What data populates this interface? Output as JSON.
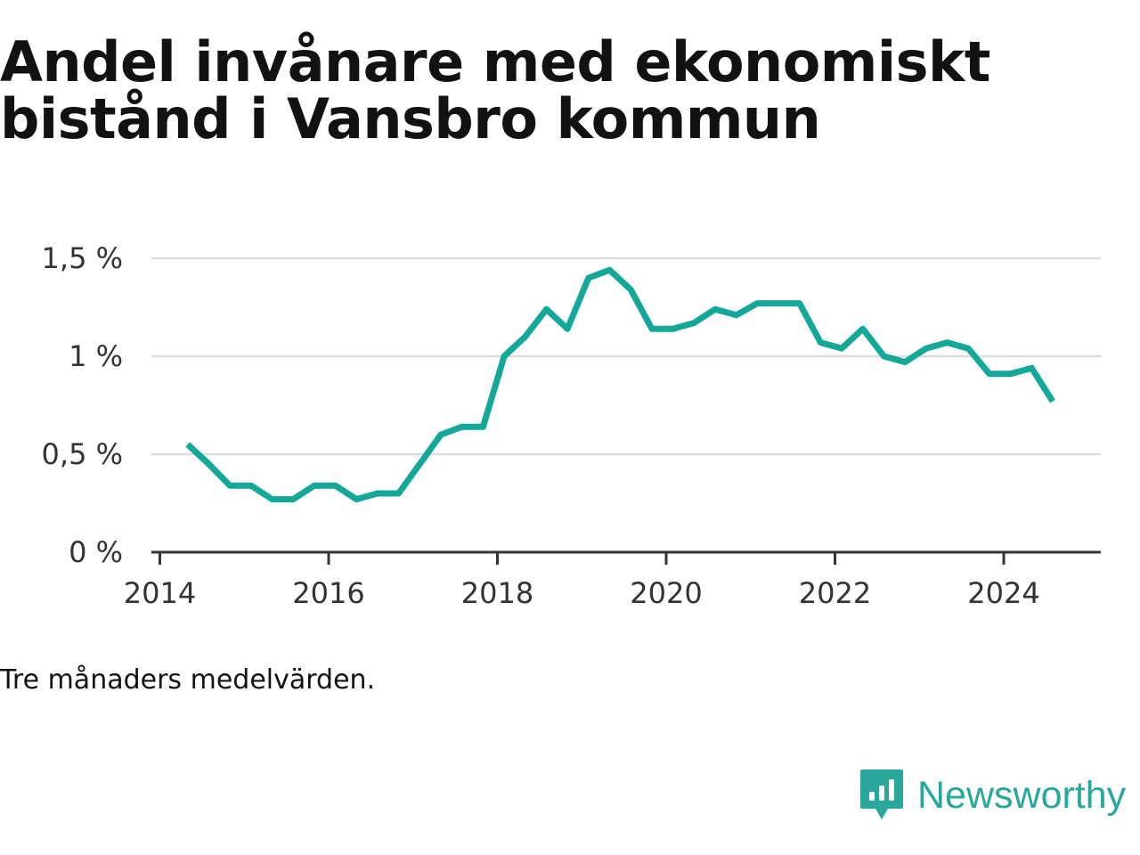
{
  "title_line1": "Andel invånare med ekonomiskt",
  "title_line2": "bistånd i Vansbro kommun",
  "note": "Tre månaders medelvärden.",
  "brand": {
    "name": "Newsworthy",
    "icon": "bar-chart-bubble-icon",
    "color": "#2aa79b"
  },
  "chart_data": {
    "type": "line",
    "title": "Andel invånare med ekonomiskt bistånd i Vansbro kommun",
    "xlabel": "",
    "ylabel": "",
    "xlim": [
      2013.9,
      2025.15
    ],
    "ylim": [
      0,
      1.5
    ],
    "x_ticks": [
      2014,
      2016,
      2018,
      2020,
      2022,
      2024
    ],
    "x_tick_labels": [
      "2014",
      "2016",
      "2018",
      "2020",
      "2022",
      "2024"
    ],
    "y_ticks": [
      0,
      0.5,
      1,
      1.5
    ],
    "y_tick_labels": [
      "0 %",
      "0,5 %",
      "1 %",
      "1,5 %"
    ],
    "grid": true,
    "color": "#14a89a",
    "series": [
      {
        "x": [
          2014.33,
          2014.58,
          2014.83,
          2015.08,
          2015.33,
          2015.58,
          2015.83,
          2016.08,
          2016.33,
          2016.58,
          2016.83,
          2017.08,
          2017.33,
          2017.58,
          2017.83,
          2018.08,
          2018.33,
          2018.58,
          2018.83,
          2019.08,
          2019.33,
          2019.58,
          2019.83,
          2020.08,
          2020.33,
          2020.58,
          2020.83,
          2021.08,
          2021.33,
          2021.58,
          2021.83,
          2022.08,
          2022.33,
          2022.58,
          2022.83,
          2023.08,
          2023.33,
          2023.58,
          2023.83,
          2024.08,
          2024.33,
          2024.58
        ],
        "values": [
          0.55,
          0.45,
          0.34,
          0.34,
          0.27,
          0.27,
          0.34,
          0.34,
          0.27,
          0.3,
          0.3,
          0.45,
          0.6,
          0.64,
          0.64,
          1.0,
          1.1,
          1.24,
          1.14,
          1.4,
          1.44,
          1.34,
          1.14,
          1.14,
          1.17,
          1.24,
          1.21,
          1.27,
          1.27,
          1.27,
          1.07,
          1.04,
          1.14,
          1.0,
          0.97,
          1.04,
          1.07,
          1.04,
          0.91,
          0.91,
          0.94,
          0.77
        ]
      }
    ]
  }
}
